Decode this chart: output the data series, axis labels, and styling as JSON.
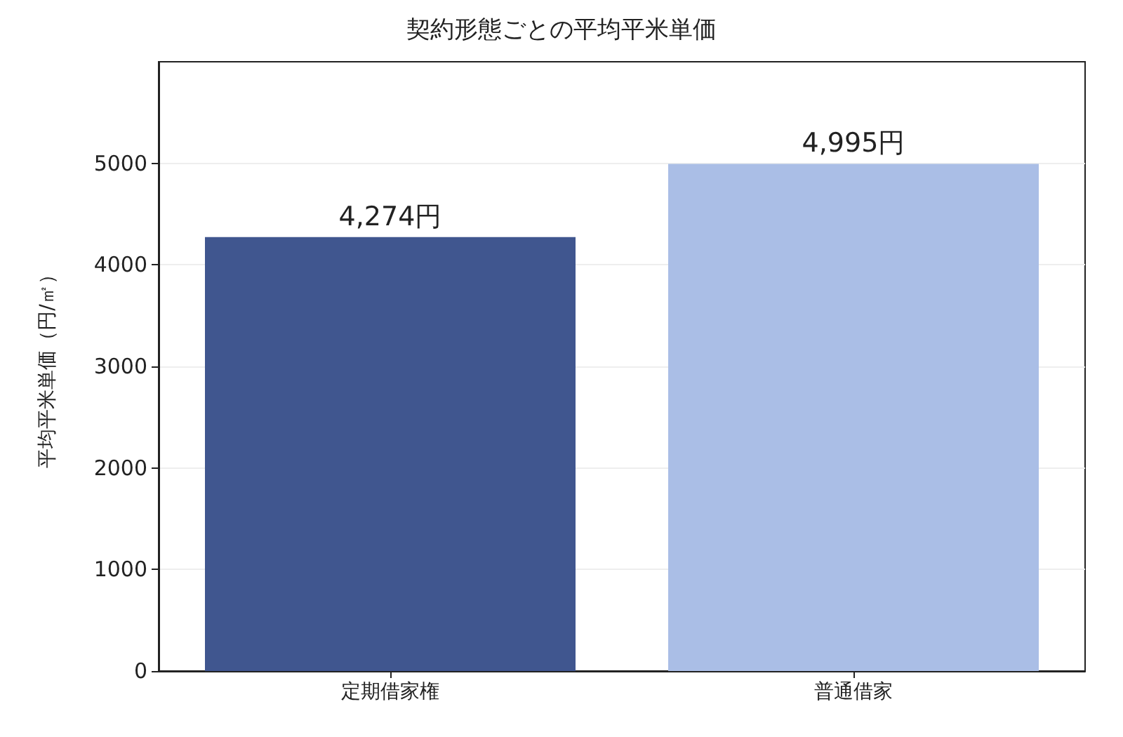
{
  "chart_data": {
    "type": "bar",
    "title": "契約形態ごとの平均平米単価",
    "ylabel": "平均平米単価（円/㎡）",
    "categories": [
      "定期借家権",
      "普通借家"
    ],
    "values": [
      4274,
      4995
    ],
    "colors": [
      "#40568f",
      "#aabee6"
    ],
    "value_labels": [
      "4,274円",
      "4,995円"
    ],
    "ylim": [
      0,
      6000
    ],
    "yticks": [
      0,
      1000,
      2000,
      3000,
      4000,
      5000
    ],
    "grid": "y"
  }
}
